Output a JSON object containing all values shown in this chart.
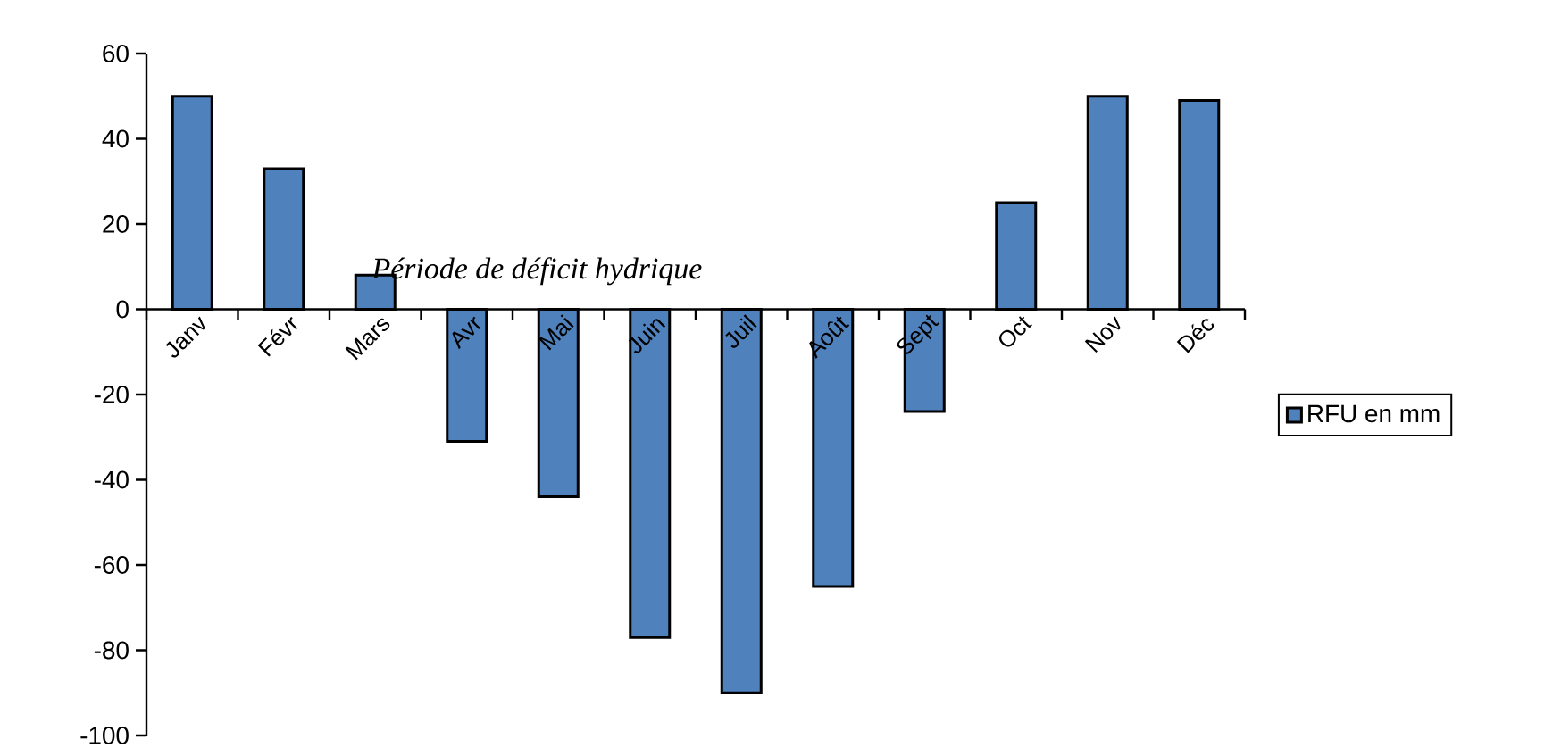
{
  "chart_data": {
    "type": "bar",
    "categories": [
      "Janv",
      "Févr",
      "Mars",
      "Avr",
      "Mai",
      "Juin",
      "Juil",
      "Août",
      "Sept",
      "Oct",
      "Nov",
      "Déc"
    ],
    "series": [
      {
        "name": "RFU en mm",
        "color": "#4f81bd",
        "values": [
          50,
          33,
          8,
          -31,
          -44,
          -77,
          -90,
          -65,
          -24,
          25,
          50,
          49
        ]
      }
    ],
    "ylim": [
      -100,
      60
    ],
    "yticks": [
      -100,
      -80,
      -60,
      -40,
      -20,
      0,
      20,
      40,
      60
    ],
    "annotations": [
      "*Période de déficit hydrique*"
    ],
    "legend": "right",
    "grid": false
  }
}
